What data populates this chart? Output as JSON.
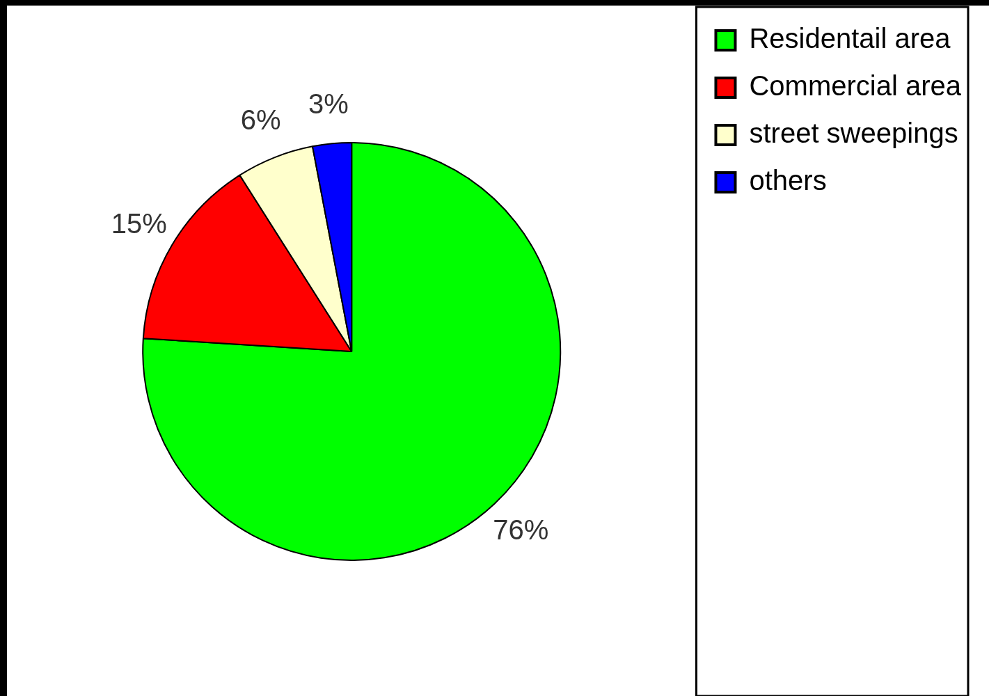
{
  "chart_data": {
    "type": "pie",
    "categories": [
      "Residentail area",
      "Commercial area",
      "street sweepings",
      "others"
    ],
    "values": [
      76,
      15,
      6,
      3
    ],
    "colors": [
      "#00ff00",
      "#ff0000",
      "#ffffcc",
      "#0000ff"
    ],
    "value_labels": [
      "76%",
      "15%",
      "6%",
      "3%"
    ],
    "legend": "top right"
  }
}
